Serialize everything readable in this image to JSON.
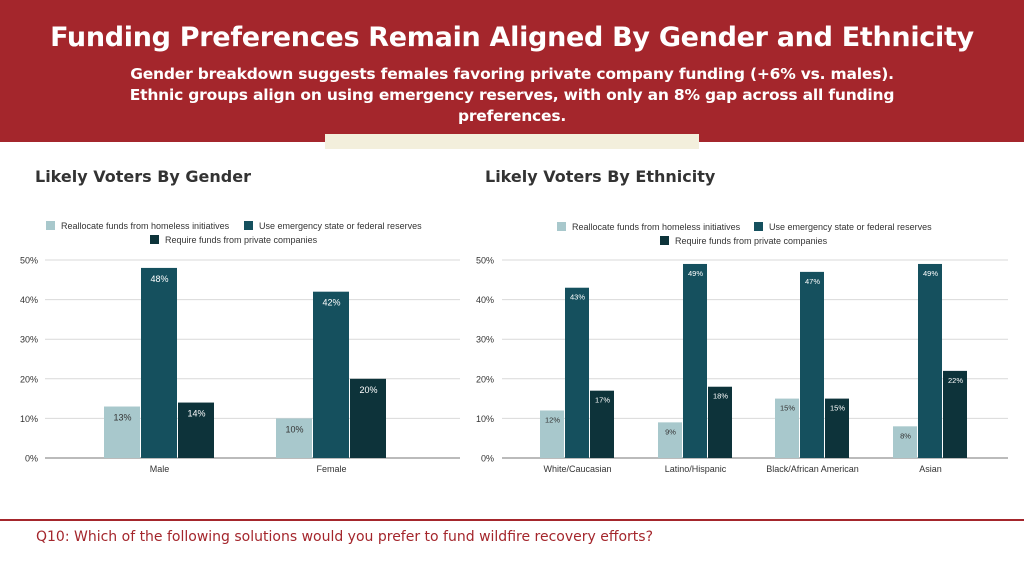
{
  "header": {
    "title": "Funding Preferences Remain Aligned By Gender and Ethnicity",
    "subtitle": "Gender breakdown suggests females favoring private company funding (+6% vs. males). Ethnic groups align on using emergency reserves, with only an 8% gap across all funding preferences."
  },
  "footer": {
    "question": "Q10: Which of the following solutions would you prefer to fund wildfire recovery efforts?"
  },
  "colors": {
    "header_bg": "#a4262c",
    "series_1": "#a8c8cc",
    "series_2": "#15505e",
    "series_3": "#0d333a"
  },
  "chart_data": [
    {
      "type": "bar",
      "title": "Likely Voters By Gender",
      "categories": [
        "Male",
        "Female"
      ],
      "series": [
        {
          "name": "Reallocate funds from homeless initiatives",
          "values": [
            13,
            10
          ],
          "labels": [
            "13%",
            "10%"
          ]
        },
        {
          "name": "Use emergency state or federal reserves",
          "values": [
            48,
            42
          ],
          "labels": [
            "48%",
            "42%"
          ]
        },
        {
          "name": "Require funds from private companies",
          "values": [
            14,
            20
          ],
          "labels": [
            "14%",
            "20%"
          ]
        }
      ],
      "yticks": [
        "0%",
        "10%",
        "20%",
        "30%",
        "40%",
        "50%"
      ],
      "ylim": [
        0,
        50
      ],
      "grid": true,
      "legend": "top"
    },
    {
      "type": "bar",
      "title": "Likely Voters By Ethnicity",
      "categories": [
        "White/Caucasian",
        "Latino/Hispanic",
        "Black/African American",
        "Asian"
      ],
      "series": [
        {
          "name": "Reallocate funds from homeless initiatives",
          "values": [
            12,
            9,
            15,
            8
          ],
          "labels": [
            "12%",
            "9%",
            "15%",
            "8%"
          ]
        },
        {
          "name": "Use emergency state or federal reserves",
          "values": [
            43,
            49,
            47,
            49
          ],
          "labels": [
            "43%",
            "49%",
            "47%",
            "49%"
          ]
        },
        {
          "name": "Require funds from private companies",
          "values": [
            17,
            18,
            15,
            22
          ],
          "labels": [
            "17%",
            "18%",
            "15%",
            "22%"
          ]
        }
      ],
      "yticks": [
        "0%",
        "10%",
        "20%",
        "30%",
        "40%",
        "50%"
      ],
      "ylim": [
        0,
        50
      ],
      "grid": true,
      "legend": "top"
    }
  ]
}
